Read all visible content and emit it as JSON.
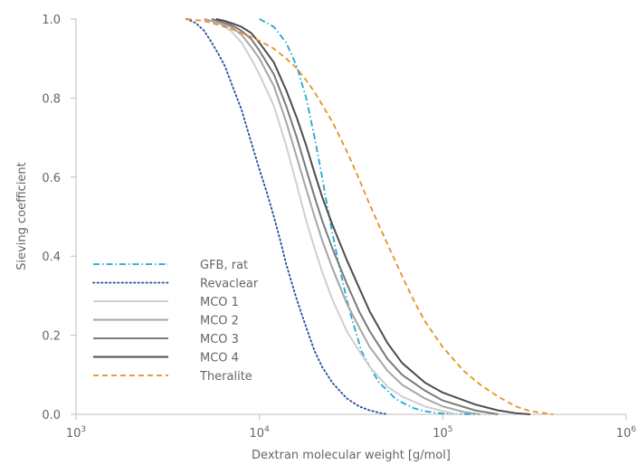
{
  "chart_data": {
    "type": "line",
    "title": "",
    "xlabel": "Dextran molecular weight [g/mol]",
    "ylabel": "Sieving coefficient",
    "xscale": "log",
    "xlim": [
      1000,
      1000000
    ],
    "ylim": [
      0,
      1.0
    ],
    "x_ticks": [
      {
        "value": 1000,
        "base": "10",
        "exp": "3"
      },
      {
        "value": 10000,
        "base": "10",
        "exp": "4"
      },
      {
        "value": 100000,
        "base": "10",
        "exp": "5"
      },
      {
        "value": 1000000,
        "base": "10",
        "exp": "6"
      }
    ],
    "y_ticks": [
      {
        "value": 0.0,
        "label": "0.0"
      },
      {
        "value": 0.2,
        "label": "0.2"
      },
      {
        "value": 0.4,
        "label": "0.4"
      },
      {
        "value": 0.6,
        "label": "0.6"
      },
      {
        "value": 0.8,
        "label": "0.8"
      },
      {
        "value": 1.0,
        "label": "1.0"
      }
    ],
    "grid": false,
    "legend_position": "bottom-left",
    "series": [
      {
        "name": "GFB, rat",
        "color": "#1ba8d6",
        "dash": "dashdot",
        "x": [
          10000,
          12000,
          14000,
          16000,
          18000,
          20000,
          22000,
          24000,
          26000,
          28000,
          30000,
          32000,
          34000,
          36000,
          40000,
          45000,
          50000,
          55000,
          60000,
          70000,
          80000,
          90000,
          100000,
          120000,
          150000
        ],
        "y": [
          1.0,
          0.98,
          0.94,
          0.88,
          0.8,
          0.7,
          0.6,
          0.5,
          0.42,
          0.35,
          0.29,
          0.24,
          0.2,
          0.16,
          0.12,
          0.08,
          0.06,
          0.04,
          0.03,
          0.015,
          0.008,
          0.004,
          0.002,
          0.001,
          0.0
        ]
      },
      {
        "name": "Revaclear",
        "color": "#1f4e9c",
        "dash": "dotted",
        "x": [
          4000,
          4500,
          5000,
          5500,
          6000,
          6500,
          7000,
          8000,
          9000,
          10000,
          11000,
          12000,
          13000,
          14000,
          16000,
          18000,
          20000,
          22000,
          25000,
          30000,
          35000,
          40000,
          45000,
          50000
        ],
        "y": [
          1.0,
          0.99,
          0.97,
          0.94,
          0.91,
          0.88,
          0.84,
          0.77,
          0.69,
          0.62,
          0.56,
          0.5,
          0.44,
          0.38,
          0.29,
          0.22,
          0.16,
          0.12,
          0.08,
          0.04,
          0.02,
          0.01,
          0.004,
          0.0
        ]
      },
      {
        "name": "MCO 1",
        "color": "#cfcfcf",
        "dash": "solid",
        "x": [
          5000,
          6000,
          7000,
          8000,
          9000,
          10000,
          12000,
          14000,
          16000,
          18000,
          20000,
          22000,
          25000,
          30000,
          35000,
          40000,
          50000,
          60000,
          80000,
          100000,
          120000
        ],
        "y": [
          1.0,
          0.99,
          0.97,
          0.94,
          0.9,
          0.86,
          0.78,
          0.68,
          0.58,
          0.49,
          0.42,
          0.36,
          0.29,
          0.21,
          0.16,
          0.12,
          0.07,
          0.045,
          0.02,
          0.008,
          0.0
        ]
      },
      {
        "name": "MCO 2",
        "color": "#a6a6a6",
        "dash": "solid",
        "x": [
          5000,
          6000,
          7000,
          8000,
          9000,
          10000,
          12000,
          14000,
          16000,
          18000,
          20000,
          22000,
          25000,
          30000,
          35000,
          40000,
          50000,
          60000,
          80000,
          100000,
          130000,
          160000
        ],
        "y": [
          1.0,
          0.99,
          0.98,
          0.96,
          0.93,
          0.9,
          0.83,
          0.74,
          0.65,
          0.57,
          0.5,
          0.44,
          0.37,
          0.28,
          0.22,
          0.17,
          0.11,
          0.075,
          0.04,
          0.02,
          0.006,
          0.0
        ]
      },
      {
        "name": "MCO 3",
        "color": "#7a7a7a",
        "dash": "solid",
        "x": [
          5500,
          6000,
          7000,
          8000,
          9000,
          10000,
          12000,
          14000,
          16000,
          18000,
          20000,
          22000,
          25000,
          30000,
          35000,
          40000,
          50000,
          60000,
          80000,
          100000,
          150000,
          200000
        ],
        "y": [
          1.0,
          0.995,
          0.985,
          0.97,
          0.95,
          0.92,
          0.86,
          0.78,
          0.7,
          0.62,
          0.55,
          0.49,
          0.42,
          0.33,
          0.26,
          0.21,
          0.14,
          0.1,
          0.06,
          0.035,
          0.01,
          0.0
        ]
      },
      {
        "name": "MCO 4",
        "color": "#4d4d4f",
        "dash": "solid",
        "x": [
          5800,
          6500,
          7000,
          8000,
          9000,
          10000,
          12000,
          14000,
          16000,
          18000,
          20000,
          22000,
          25000,
          30000,
          35000,
          40000,
          50000,
          60000,
          80000,
          100000,
          150000,
          200000,
          250000,
          300000
        ],
        "y": [
          1.0,
          0.995,
          0.99,
          0.98,
          0.965,
          0.94,
          0.89,
          0.82,
          0.75,
          0.68,
          0.61,
          0.55,
          0.48,
          0.39,
          0.32,
          0.26,
          0.18,
          0.13,
          0.08,
          0.055,
          0.025,
          0.01,
          0.003,
          0.0
        ]
      },
      {
        "name": "Theralite",
        "color": "#e8901e",
        "dash": "dashed",
        "x": [
          4000,
          5000,
          6000,
          7000,
          8000,
          10000,
          12000,
          14000,
          16000,
          18000,
          20000,
          25000,
          30000,
          35000,
          40000,
          50000,
          60000,
          70000,
          80000,
          100000,
          130000,
          160000,
          200000,
          250000,
          300000,
          400000
        ],
        "y": [
          1.0,
          0.995,
          0.985,
          0.975,
          0.965,
          0.945,
          0.925,
          0.9,
          0.875,
          0.845,
          0.815,
          0.74,
          0.665,
          0.595,
          0.53,
          0.43,
          0.35,
          0.285,
          0.235,
          0.17,
          0.11,
          0.075,
          0.045,
          0.02,
          0.008,
          0.0
        ]
      }
    ]
  }
}
